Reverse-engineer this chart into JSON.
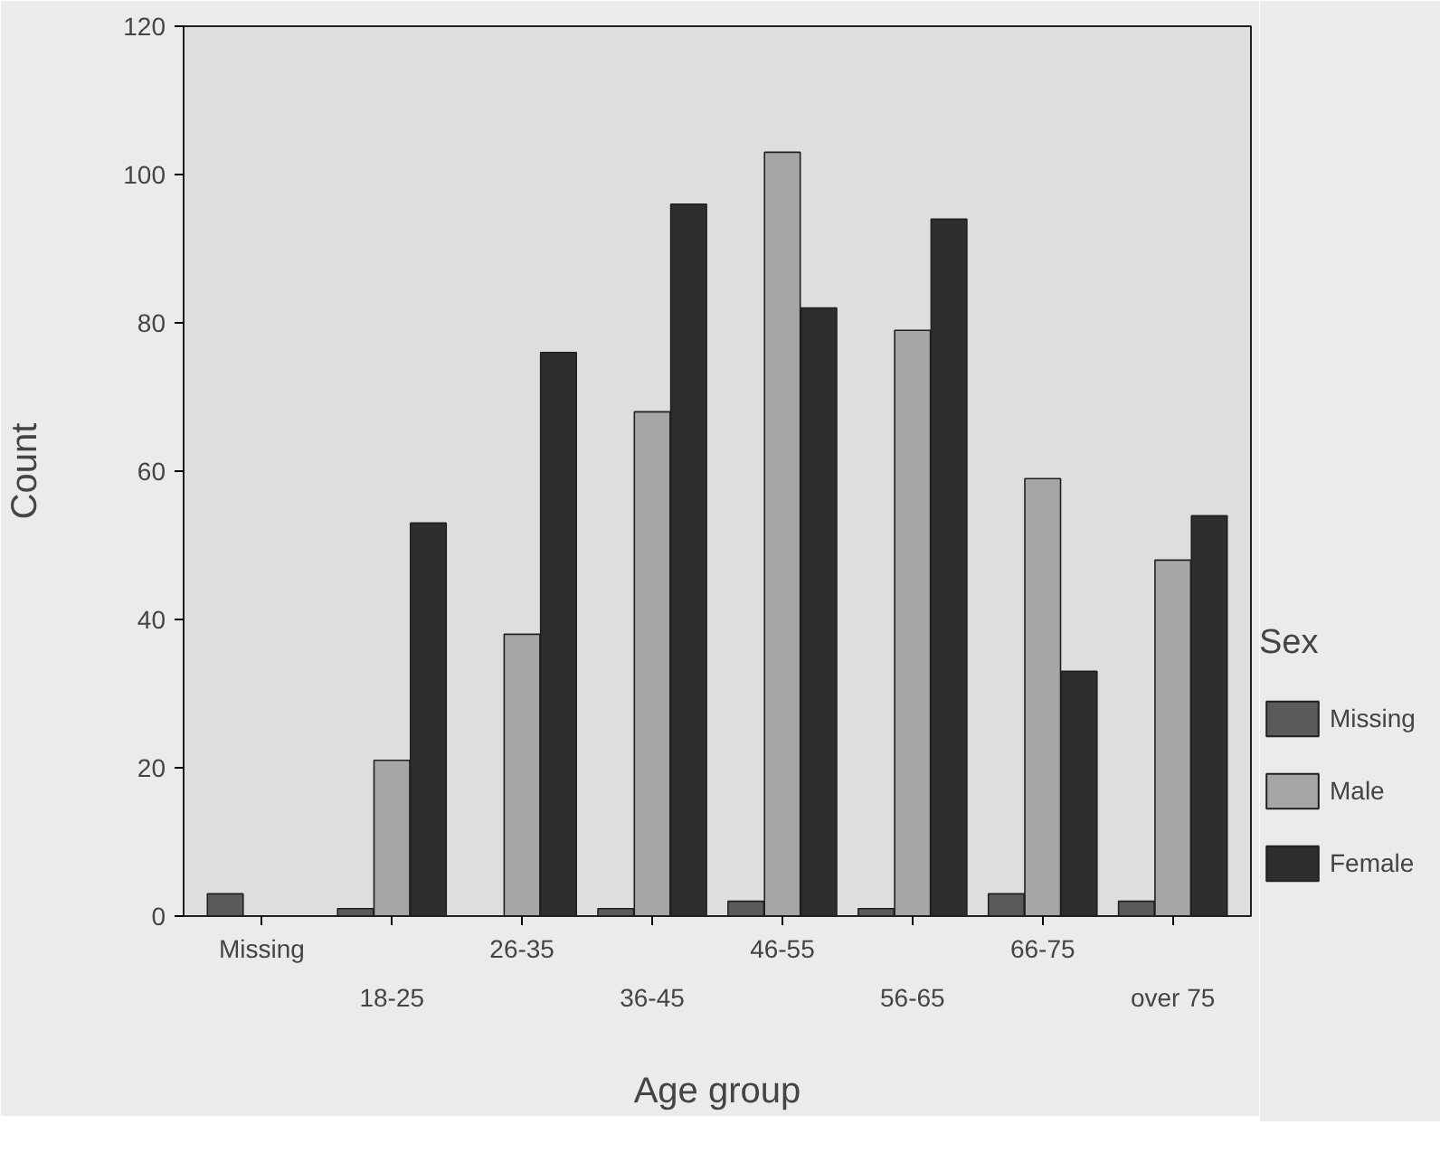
{
  "chart_data": {
    "type": "bar",
    "xlabel": "Age group",
    "ylabel": "Count",
    "legend_title": "Sex",
    "legend": "right",
    "categories": [
      "Missing",
      "18-25",
      "26-35",
      "36-45",
      "46-55",
      "56-65",
      "66-75",
      "over 75"
    ],
    "series": [
      {
        "name": "Missing",
        "color": "#5a5a5a",
        "values": [
          3,
          1,
          0,
          1,
          2,
          1,
          3,
          2
        ]
      },
      {
        "name": "Male",
        "color": "#a6a6a6",
        "values": [
          0,
          21,
          38,
          68,
          103,
          79,
          59,
          48
        ]
      },
      {
        "name": "Female",
        "color": "#2e2e2e",
        "values": [
          0,
          53,
          76,
          96,
          82,
          94,
          33,
          54
        ]
      }
    ],
    "ylim": [
      0,
      120
    ],
    "yticks": [
      0,
      20,
      40,
      60,
      80,
      100,
      120
    ],
    "grid": false
  }
}
